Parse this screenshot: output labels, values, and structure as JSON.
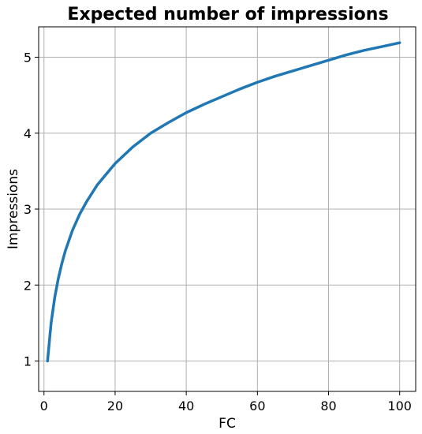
{
  "chart_data": {
    "type": "line",
    "title": "Expected number of impressions",
    "xlabel": "FC",
    "ylabel": "Impressions",
    "xlim": [
      -1.5,
      104.5
    ],
    "ylim": [
      0.6,
      5.4
    ],
    "xticks": [
      0,
      20,
      40,
      60,
      80,
      100
    ],
    "yticks": [
      1,
      2,
      3,
      4,
      5
    ],
    "grid": true,
    "series": [
      {
        "color": "#1f77b4",
        "x": [
          1,
          2,
          3,
          4,
          5,
          6,
          8,
          10,
          12,
          15,
          20,
          25,
          30,
          35,
          40,
          45,
          50,
          55,
          60,
          65,
          70,
          75,
          80,
          85,
          90,
          95,
          100
        ],
        "y": [
          1.0,
          1.5,
          1.83,
          2.08,
          2.28,
          2.45,
          2.72,
          2.93,
          3.1,
          3.32,
          3.6,
          3.82,
          4.0,
          4.14,
          4.27,
          4.38,
          4.48,
          4.58,
          4.67,
          4.75,
          4.82,
          4.89,
          4.96,
          5.03,
          5.09,
          5.14,
          5.19
        ]
      }
    ]
  }
}
